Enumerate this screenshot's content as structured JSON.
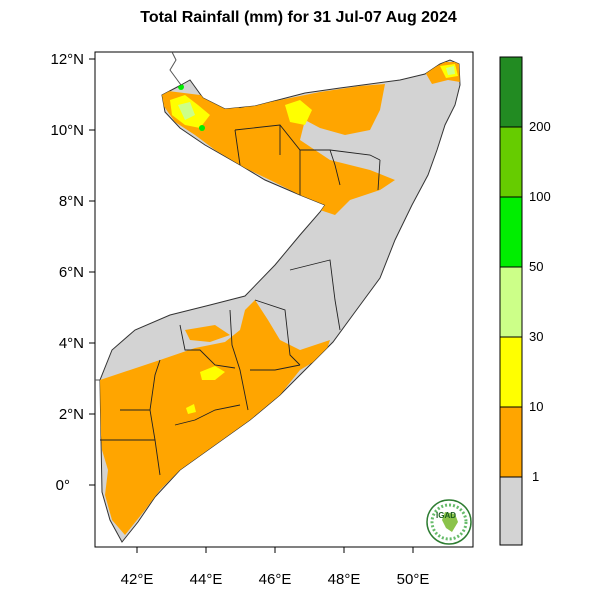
{
  "title": "Total Rainfall (mm) for 31 Jul-07 Aug 2024",
  "axes": {
    "lat_labels": [
      "12°N",
      "10°N",
      "8°N",
      "6°N",
      "4°N",
      "2°N",
      "0°"
    ],
    "lon_labels": [
      "42°E",
      "44°E",
      "46°E",
      "48°E",
      "50°E"
    ]
  },
  "legend": {
    "labels": [
      "200",
      "100",
      "50",
      "30",
      "10",
      "1"
    ],
    "bins": [
      {
        "range": "> 200",
        "color": "#228b22"
      },
      {
        "range": "100-200",
        "color": "#66cc00"
      },
      {
        "range": "50-100",
        "color": "#00ee00"
      },
      {
        "range": "30-50",
        "color": "#ccff88"
      },
      {
        "range": "10-30",
        "color": "#ffff00"
      },
      {
        "range": "1-10",
        "color": "#ffa500"
      },
      {
        "range": "< 1",
        "color": "#d3d3d3"
      }
    ]
  },
  "logo": {
    "text": "IGAD"
  },
  "colors": {
    "land": "#d3d3d3",
    "rain_1_10": "#ffa500",
    "rain_10_30": "#ffff00",
    "rain_30_50": "#ccff88",
    "rain_50_100": "#00ee00"
  }
}
